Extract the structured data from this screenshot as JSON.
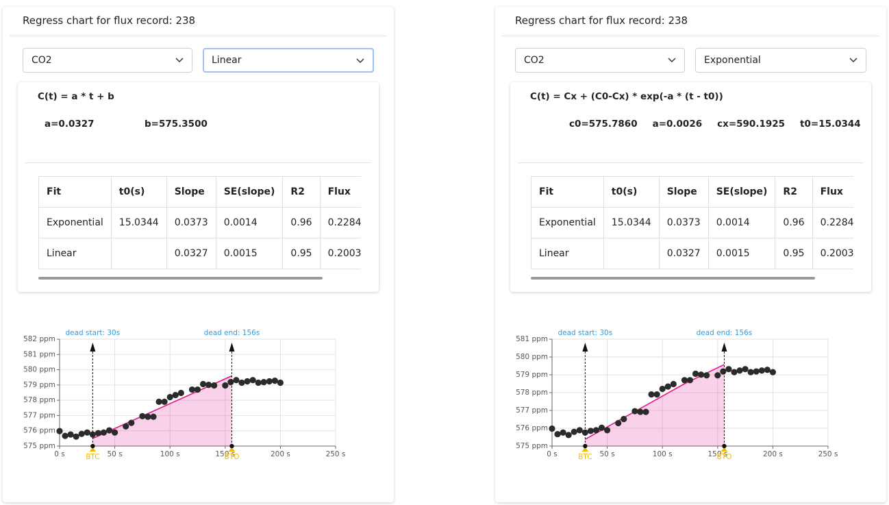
{
  "panels": [
    {
      "title": "Regress chart for flux record: 238",
      "gas": "CO2",
      "model": "Linear",
      "formula": "C(t) = a * t + b",
      "params": [
        "a=0.0327",
        "b=575.3500"
      ],
      "table": {
        "header": [
          "Fit",
          "t0(s)",
          "Slope",
          "SE(slope)",
          "R2",
          "Flux"
        ],
        "rows": [
          [
            "Exponential",
            "15.0344",
            "0.0373",
            "0.0014",
            "0.96",
            "0.2284"
          ],
          [
            "Linear",
            null,
            "0.0327",
            "0.0015",
            "0.95",
            "0.2003"
          ]
        ]
      },
      "chart_data": {
        "type": "scatter",
        "x": [
          0,
          5,
          10,
          15,
          20,
          25,
          30,
          35,
          40,
          45,
          50,
          60,
          65,
          75,
          80,
          85,
          90,
          95,
          100,
          105,
          110,
          120,
          125,
          130,
          135,
          140,
          150,
          155,
          160,
          165,
          170,
          175,
          180,
          185,
          190,
          195,
          200
        ],
        "values": [
          575.98,
          575.67,
          575.76,
          575.62,
          575.8,
          575.89,
          575.76,
          575.85,
          575.89,
          576.03,
          575.89,
          576.29,
          576.52,
          576.96,
          576.92,
          576.92,
          577.9,
          577.9,
          578.21,
          578.34,
          578.48,
          578.7,
          578.7,
          579.06,
          579.01,
          578.97,
          578.97,
          579.19,
          579.32,
          579.15,
          579.24,
          579.32,
          579.15,
          579.19,
          579.24,
          579.28,
          579.15
        ],
        "color": "#2b2b2b",
        "fit": {
          "color": "#e0198a",
          "x": [
            30,
            156
          ],
          "values": [
            575.5,
            579.6
          ]
        },
        "xlim": [
          0,
          250
        ],
        "ylim": [
          575,
          582
        ],
        "xticks": [
          {
            "value": 0,
            "label": "0 s"
          },
          {
            "value": 50,
            "label": "50 s"
          },
          {
            "value": 100,
            "label": "100 s"
          },
          {
            "value": 150,
            "label": "150 s"
          },
          {
            "value": 200,
            "label": "200 s"
          },
          {
            "value": 250,
            "label": "250 s"
          }
        ],
        "yticks": [
          {
            "value": 575,
            "label": "575 ppm"
          },
          {
            "value": 576,
            "label": "576 ppm"
          },
          {
            "value": 577,
            "label": "577 ppm"
          },
          {
            "value": 578,
            "label": "578 ppm"
          },
          {
            "value": 579,
            "label": "579 ppm"
          },
          {
            "value": 580,
            "label": "580 ppm"
          },
          {
            "value": 581,
            "label": "581 ppm"
          },
          {
            "value": 582,
            "label": "582 ppm"
          }
        ],
        "grid": true,
        "annotations": [
          {
            "label": "dead start: 30s",
            "x": 30
          },
          {
            "label": "dead end: 156s",
            "x": 156
          }
        ],
        "markers": [
          {
            "label": "BTC",
            "x": 30
          },
          {
            "label": "BTO",
            "x": 156
          }
        ]
      }
    },
    {
      "title": "Regress chart for flux record: 238",
      "gas": "CO2",
      "model": "Exponential",
      "formula": "C(t) = Cx + (C0-Cx) * exp(-a * (t - t0))",
      "params": [
        "c0=575.7860",
        "a=0.0026",
        "cx=590.1925",
        "t0=15.0344"
      ],
      "table": {
        "header": [
          "Fit",
          "t0(s)",
          "Slope",
          "SE(slope)",
          "R2",
          "Flux"
        ],
        "rows": [
          [
            "Exponential",
            "15.0344",
            "0.0373",
            "0.0014",
            "0.96",
            "0.2284"
          ],
          [
            "Linear",
            null,
            "0.0327",
            "0.0015",
            "0.95",
            "0.2003"
          ]
        ]
      },
      "chart_data": {
        "type": "scatter",
        "x": [
          0,
          5,
          10,
          15,
          20,
          25,
          30,
          35,
          40,
          45,
          50,
          60,
          65,
          75,
          80,
          85,
          90,
          95,
          100,
          105,
          110,
          120,
          125,
          130,
          135,
          140,
          150,
          155,
          160,
          165,
          170,
          175,
          180,
          185,
          190,
          195,
          200
        ],
        "values": [
          575.98,
          575.67,
          575.76,
          575.62,
          575.8,
          575.89,
          575.76,
          575.85,
          575.89,
          576.03,
          575.89,
          576.29,
          576.52,
          576.96,
          576.92,
          576.92,
          577.9,
          577.9,
          578.21,
          578.34,
          578.48,
          578.7,
          578.7,
          579.06,
          579.01,
          578.97,
          578.97,
          579.19,
          579.32,
          579.15,
          579.24,
          579.32,
          579.15,
          579.19,
          579.24,
          579.28,
          579.15
        ],
        "color": "#2b2b2b",
        "fit": {
          "color": "#e0198a",
          "x": [
            30,
            60,
            90,
            120,
            156
          ],
          "values": [
            575.38,
            576.42,
            577.46,
            578.5,
            579.58
          ]
        },
        "xlim": [
          0,
          250
        ],
        "ylim": [
          575,
          581
        ],
        "xticks": [
          {
            "value": 0,
            "label": "0 s"
          },
          {
            "value": 50,
            "label": "50 s"
          },
          {
            "value": 100,
            "label": "100 s"
          },
          {
            "value": 150,
            "label": "150 s"
          },
          {
            "value": 200,
            "label": "200 s"
          },
          {
            "value": 250,
            "label": "250 s"
          }
        ],
        "yticks": [
          {
            "value": 575,
            "label": "575 ppm"
          },
          {
            "value": 576,
            "label": "576 ppm"
          },
          {
            "value": 577,
            "label": "577 ppm"
          },
          {
            "value": 578,
            "label": "578 ppm"
          },
          {
            "value": 579,
            "label": "579 ppm"
          },
          {
            "value": 580,
            "label": "580 ppm"
          },
          {
            "value": 581,
            "label": "581 ppm"
          }
        ],
        "grid": true,
        "annotations": [
          {
            "label": "dead start: 30s",
            "x": 30
          },
          {
            "label": "dead end: 156s",
            "x": 156
          }
        ],
        "markers": [
          {
            "label": "BTC",
            "x": 30
          },
          {
            "label": "BTO",
            "x": 156
          }
        ]
      }
    }
  ]
}
